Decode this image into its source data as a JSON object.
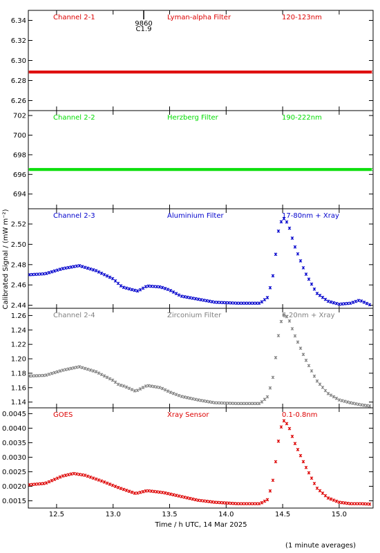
{
  "figure": {
    "ylabel_html": "Calibrated Signal / (mW m⁻²)",
    "xlabel": "Time / h UTC, 14 Mar 2025",
    "footnote": "(1 minute averages)",
    "top_marker": {
      "label1": "9860",
      "label2": "C1.9"
    }
  },
  "chart_data": [
    {
      "type": "scatter",
      "channel": "Channel 2-1",
      "filter": "Lyman-alpha Filter",
      "band": "120-123nm",
      "color": "#dd0000",
      "ylim": [
        6.25,
        6.35
      ],
      "yticks": [
        6.26,
        6.28,
        6.3,
        6.32,
        6.34
      ],
      "ytick_labels": [
        "6.26",
        "6.28",
        "6.30",
        "6.32",
        "6.34"
      ],
      "points": [
        [
          12.25,
          6.2885
        ],
        [
          15.3,
          6.2885
        ]
      ]
    },
    {
      "type": "scatter",
      "channel": "Channel 2-2",
      "filter": "Herzberg Filter",
      "band": "190-222nm",
      "color": "#00dd00",
      "ylim": [
        692.5,
        702.5
      ],
      "yticks": [
        694,
        696,
        698,
        700,
        702
      ],
      "ytick_labels": [
        "694",
        "696",
        "698",
        "700",
        "702"
      ],
      "points": [
        [
          12.25,
          696.5
        ],
        [
          15.3,
          696.5
        ]
      ]
    },
    {
      "type": "scatter",
      "channel": "Channel 2-3",
      "filter": "Aluminium Filter",
      "band": "17-80nm + Xray",
      "color": "#0000cc",
      "ylim": [
        2.437,
        2.535
      ],
      "yticks": [
        2.44,
        2.46,
        2.48,
        2.5,
        2.52
      ],
      "ytick_labels": [
        "2.44",
        "2.46",
        "2.48",
        "2.50",
        "2.52"
      ],
      "points": [
        [
          12.25,
          2.47
        ],
        [
          12.4,
          2.471
        ],
        [
          12.55,
          2.476
        ],
        [
          12.7,
          2.479
        ],
        [
          12.85,
          2.474
        ],
        [
          13.0,
          2.466
        ],
        [
          13.05,
          2.461
        ],
        [
          13.08,
          2.458
        ],
        [
          13.18,
          2.455
        ],
        [
          13.22,
          2.454
        ],
        [
          13.3,
          2.459
        ],
        [
          13.42,
          2.458
        ],
        [
          13.5,
          2.455
        ],
        [
          13.6,
          2.449
        ],
        [
          13.75,
          2.446
        ],
        [
          13.9,
          2.443
        ],
        [
          14.1,
          2.442
        ],
        [
          14.3,
          2.442
        ],
        [
          14.37,
          2.448
        ],
        [
          14.42,
          2.472
        ],
        [
          14.46,
          2.512
        ],
        [
          14.5,
          2.527
        ],
        [
          14.55,
          2.52
        ],
        [
          14.6,
          2.5
        ],
        [
          14.7,
          2.472
        ],
        [
          14.8,
          2.452
        ],
        [
          14.9,
          2.444
        ],
        [
          15.0,
          2.441
        ],
        [
          15.1,
          2.442
        ],
        [
          15.18,
          2.445
        ],
        [
          15.24,
          2.442
        ],
        [
          15.3,
          2.439
        ]
      ]
    },
    {
      "type": "scatter",
      "channel": "Channel 2-4",
      "filter": "Zirconium Filter",
      "band": "6-20nm + Xray",
      "color": "#808080",
      "ylim": [
        1.132,
        1.27
      ],
      "yticks": [
        1.14,
        1.16,
        1.18,
        1.2,
        1.22,
        1.24,
        1.26
      ],
      "ytick_labels": [
        "1.14",
        "1.16",
        "1.18",
        "1.20",
        "1.22",
        "1.24",
        "1.26"
      ],
      "points": [
        [
          12.25,
          1.176
        ],
        [
          12.4,
          1.177
        ],
        [
          12.55,
          1.184
        ],
        [
          12.7,
          1.189
        ],
        [
          12.85,
          1.182
        ],
        [
          13.0,
          1.17
        ],
        [
          13.05,
          1.164
        ],
        [
          13.1,
          1.162
        ],
        [
          13.2,
          1.155
        ],
        [
          13.3,
          1.163
        ],
        [
          13.42,
          1.16
        ],
        [
          13.5,
          1.154
        ],
        [
          13.6,
          1.148
        ],
        [
          13.75,
          1.143
        ],
        [
          13.9,
          1.139
        ],
        [
          14.1,
          1.138
        ],
        [
          14.3,
          1.138
        ],
        [
          14.37,
          1.148
        ],
        [
          14.42,
          1.178
        ],
        [
          14.46,
          1.23
        ],
        [
          14.5,
          1.262
        ],
        [
          14.55,
          1.257
        ],
        [
          14.6,
          1.235
        ],
        [
          14.7,
          1.2
        ],
        [
          14.8,
          1.17
        ],
        [
          14.9,
          1.152
        ],
        [
          15.0,
          1.143
        ],
        [
          15.1,
          1.139
        ],
        [
          15.2,
          1.136
        ],
        [
          15.3,
          1.134
        ]
      ]
    },
    {
      "type": "scatter",
      "channel": "GOES",
      "filter": "Xray Sensor",
      "band": "0.1-0.8nm",
      "color": "#dd0000",
      "ylim": [
        0.00125,
        0.0047
      ],
      "yticks": [
        0.0015,
        0.002,
        0.0025,
        0.003,
        0.0035,
        0.004,
        0.0045
      ],
      "ytick_labels": [
        "0.0015",
        "0.0020",
        "0.0025",
        "0.0030",
        "0.0035",
        "0.0040",
        "0.0045"
      ],
      "points": [
        [
          12.25,
          0.00205
        ],
        [
          12.4,
          0.0021
        ],
        [
          12.55,
          0.00235
        ],
        [
          12.65,
          0.00244
        ],
        [
          12.75,
          0.00238
        ],
        [
          12.9,
          0.00218
        ],
        [
          13.05,
          0.00195
        ],
        [
          13.2,
          0.00175
        ],
        [
          13.25,
          0.0018
        ],
        [
          13.3,
          0.00185
        ],
        [
          13.45,
          0.00178
        ],
        [
          13.6,
          0.00165
        ],
        [
          13.75,
          0.00152
        ],
        [
          13.9,
          0.00145
        ],
        [
          14.1,
          0.0014
        ],
        [
          14.3,
          0.0014
        ],
        [
          14.37,
          0.00155
        ],
        [
          14.42,
          0.0023
        ],
        [
          14.46,
          0.0035
        ],
        [
          14.5,
          0.0043
        ],
        [
          14.55,
          0.0041
        ],
        [
          14.6,
          0.00355
        ],
        [
          14.7,
          0.0027
        ],
        [
          14.8,
          0.00195
        ],
        [
          14.9,
          0.0016
        ],
        [
          15.0,
          0.00145
        ],
        [
          15.1,
          0.0014
        ],
        [
          15.2,
          0.0014
        ],
        [
          15.3,
          0.00138
        ]
      ]
    }
  ],
  "xaxis": {
    "xlim": [
      12.25,
      15.3
    ],
    "ticks": [
      12.5,
      13.0,
      13.5,
      14.0,
      14.5,
      15.0
    ],
    "tick_labels": [
      "12.5",
      "13.0",
      "13.5",
      "14.0",
      "14.5",
      "15.0"
    ]
  }
}
